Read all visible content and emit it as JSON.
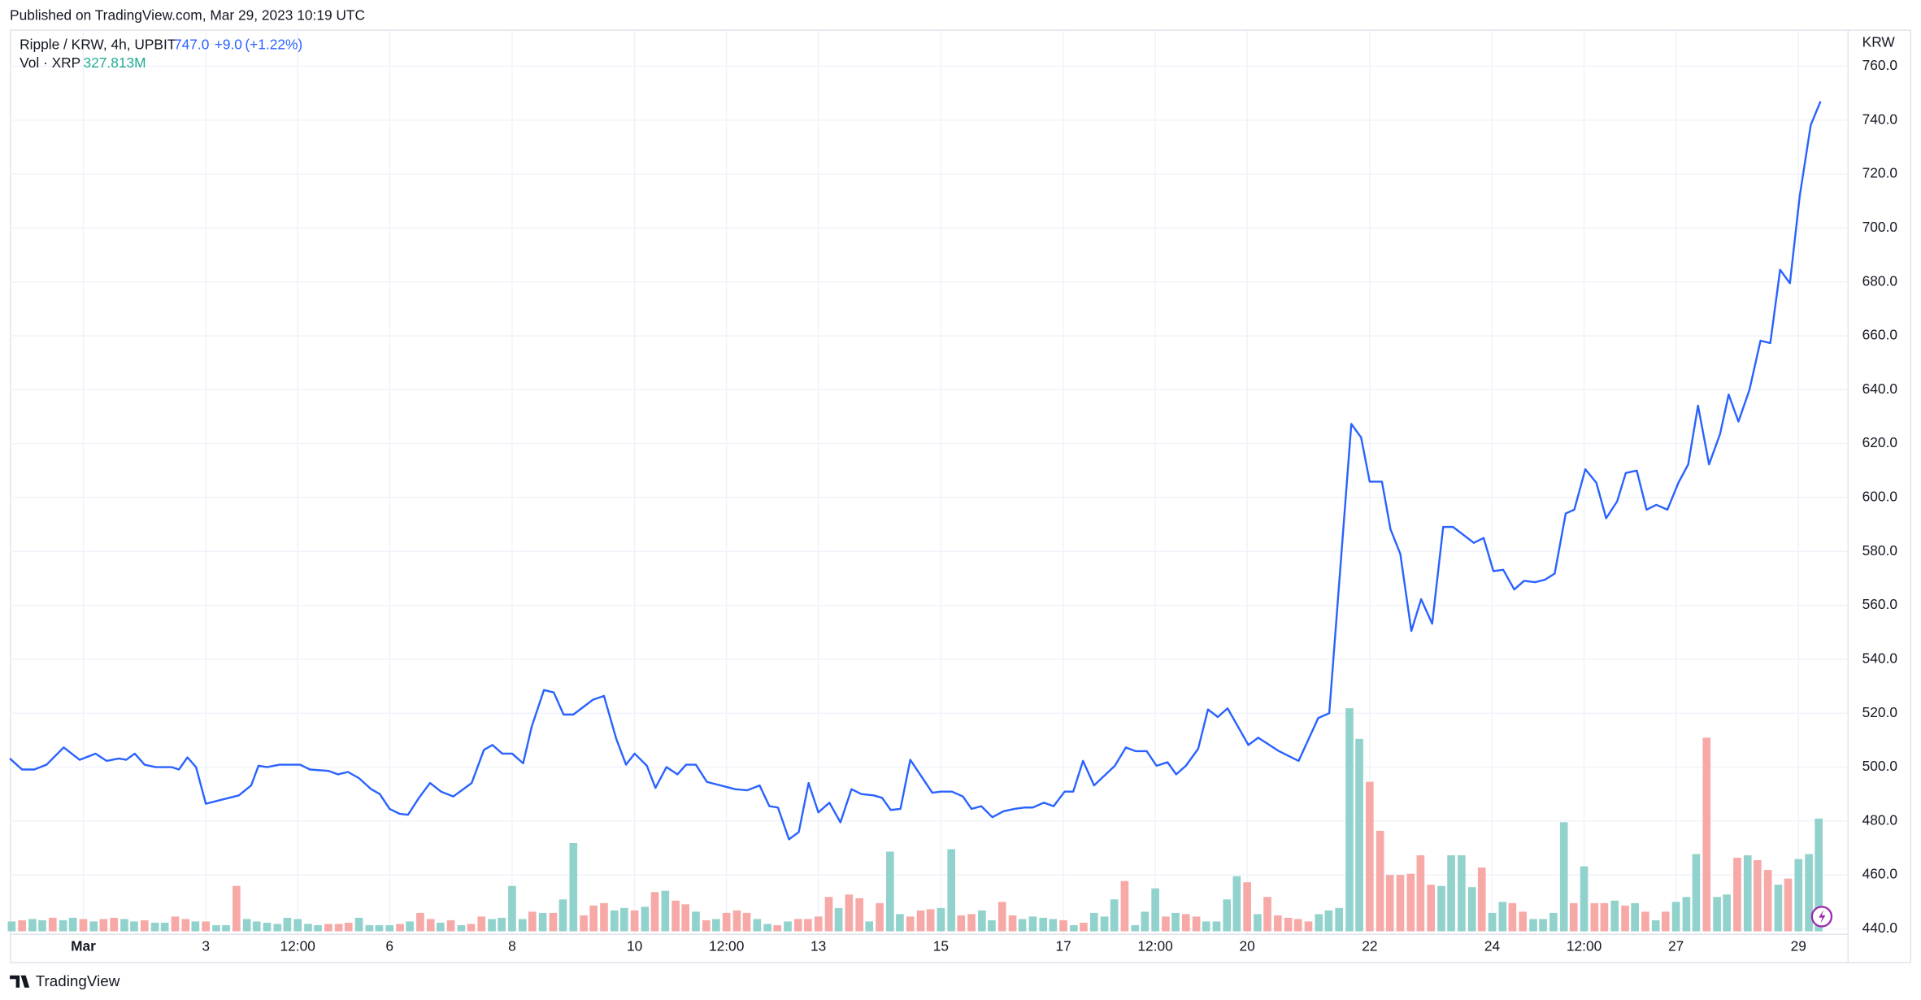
{
  "published": "Published on TradingView.com, Mar 29, 2023 10:19 UTC",
  "footer": "TradingView",
  "chart_data": {
    "type": "line",
    "title": "Ripple / KRW, 4h, UPBIT",
    "last_price": "747.0",
    "change": "+9.0",
    "change_pct": "(+1.22%)",
    "y_axis_label": "KRW",
    "color": "#2962ff",
    "grid": true,
    "xlim": [
      -1.2,
      28.8
    ],
    "xticks": [
      {
        "value": 0,
        "label": "Mar"
      },
      {
        "value": 2,
        "label": "3"
      },
      {
        "value": 3.5,
        "label": "12:00"
      },
      {
        "value": 5,
        "label": "6"
      },
      {
        "value": 7,
        "label": "8"
      },
      {
        "value": 9,
        "label": "10"
      },
      {
        "value": 10.5,
        "label": "12:00"
      },
      {
        "value": 12,
        "label": "13"
      },
      {
        "value": 14,
        "label": "15"
      },
      {
        "value": 16,
        "label": "17"
      },
      {
        "value": 17.5,
        "label": "12:00"
      },
      {
        "value": 19,
        "label": "20"
      },
      {
        "value": 21,
        "label": "22"
      },
      {
        "value": 23,
        "label": "24"
      },
      {
        "value": 24.5,
        "label": "12:00"
      },
      {
        "value": 26,
        "label": "27"
      },
      {
        "value": 28,
        "label": "29"
      }
    ],
    "ylim": [
      440,
      760
    ],
    "yticks": [
      {
        "value": 440,
        "label": "440.0"
      },
      {
        "value": 460,
        "label": "460.0"
      },
      {
        "value": 480,
        "label": "480.0"
      },
      {
        "value": 500,
        "label": "500.0"
      },
      {
        "value": 520,
        "label": "520.0"
      },
      {
        "value": 540,
        "label": "540.0"
      },
      {
        "value": 560,
        "label": "560.0"
      },
      {
        "value": 580,
        "label": "580.0"
      },
      {
        "value": 600,
        "label": "600.0"
      },
      {
        "value": 620,
        "label": "620.0"
      },
      {
        "value": 640,
        "label": "640.0"
      },
      {
        "value": 660,
        "label": "660.0"
      },
      {
        "value": 680,
        "label": "680.0"
      },
      {
        "value": 700,
        "label": "700.0"
      },
      {
        "value": 720,
        "label": "720.0"
      },
      {
        "value": 740,
        "label": "740.0"
      },
      {
        "value": 760,
        "label": "760.0"
      }
    ],
    "x": [
      -1.2,
      -1.0,
      -0.8,
      -0.6,
      -0.32,
      -0.06,
      0.2,
      0.38,
      0.58,
      0.7,
      0.84,
      1.0,
      1.18,
      1.44,
      1.56,
      1.7,
      1.84,
      2.0,
      2.54,
      2.74,
      2.86,
      3.0,
      3.2,
      3.54,
      3.7,
      4.0,
      4.16,
      4.32,
      4.5,
      4.7,
      4.84,
      5.0,
      5.16,
      5.3,
      5.48,
      5.66,
      5.84,
      6.04,
      6.34,
      6.54,
      6.68,
      6.84,
      7.0,
      7.18,
      7.32,
      7.52,
      7.68,
      7.84,
      8.0,
      8.32,
      8.5,
      8.7,
      8.86,
      9.0,
      9.2,
      9.34,
      9.52,
      9.7,
      9.84,
      10.0,
      10.18,
      10.64,
      10.84,
      11.04,
      11.2,
      11.34,
      11.52,
      11.68,
      11.84,
      12.0,
      12.18,
      12.36,
      12.54,
      12.7,
      12.9,
      13.04,
      13.18,
      13.34,
      13.5,
      13.86,
      14.0,
      14.18,
      14.36,
      14.5,
      14.66,
      14.84,
      15.02,
      15.2,
      15.36,
      15.5,
      15.68,
      15.84,
      16.02,
      16.16,
      16.32,
      16.5,
      16.84,
      17.02,
      17.18,
      17.36,
      17.52,
      17.7,
      17.84,
      18.0,
      18.2,
      18.36,
      18.52,
      18.68,
      19.02,
      19.18,
      19.52,
      19.84,
      20.16,
      20.34,
      20.7,
      20.86,
      21.0,
      21.2,
      21.34,
      21.5,
      21.68,
      21.84,
      22.02,
      22.2,
      22.36,
      22.7,
      22.86,
      23.02,
      23.18,
      23.36,
      23.52,
      23.7,
      23.86,
      24.02,
      24.2,
      24.34,
      24.52,
      24.7,
      24.86,
      25.04,
      25.18,
      25.36,
      25.52,
      25.68,
      25.86,
      26.04,
      26.2,
      26.36,
      26.54,
      26.72,
      26.86,
      27.02,
      27.2,
      27.38,
      27.54,
      27.7,
      27.86,
      28.02,
      28.2,
      28.36
    ],
    "values": [
      503.2,
      499.1,
      499.1,
      500.9,
      507.3,
      502.7,
      505.0,
      502.3,
      503.2,
      502.7,
      505.0,
      500.9,
      500.0,
      500.0,
      499.1,
      503.6,
      500.0,
      486.4,
      489.5,
      493.2,
      500.5,
      500.0,
      500.9,
      500.9,
      499.1,
      498.6,
      497.3,
      498.2,
      495.9,
      491.8,
      490.0,
      484.5,
      482.7,
      482.3,
      488.6,
      494.1,
      490.9,
      489.1,
      494.1,
      506.4,
      508.2,
      505.0,
      505.0,
      501.4,
      515.0,
      528.6,
      527.7,
      519.5,
      519.5,
      525.0,
      526.4,
      510.5,
      500.9,
      505.0,
      500.5,
      492.3,
      500.0,
      497.3,
      500.9,
      500.9,
      494.5,
      491.8,
      491.4,
      493.2,
      485.5,
      485.0,
      473.2,
      475.9,
      494.1,
      483.2,
      486.8,
      479.5,
      491.8,
      490.0,
      489.5,
      488.6,
      484.1,
      484.5,
      502.7,
      490.5,
      490.9,
      490.9,
      489.1,
      484.5,
      485.5,
      481.4,
      483.6,
      484.5,
      485.0,
      485.0,
      486.8,
      485.5,
      490.9,
      490.9,
      502.3,
      493.2,
      500.5,
      507.3,
      505.9,
      505.9,
      500.5,
      501.8,
      497.3,
      500.5,
      506.8,
      521.4,
      518.6,
      521.8,
      508.2,
      510.9,
      505.9,
      502.3,
      518.2,
      520.0,
      627.3,
      622.3,
      605.9,
      605.9,
      588.2,
      579.1,
      550.5,
      562.3,
      553.2,
      589.1,
      589.1,
      583.2,
      585.0,
      572.7,
      573.2,
      565.9,
      569.1,
      568.6,
      569.5,
      571.8,
      594.1,
      595.5,
      610.5,
      605.5,
      592.3,
      598.6,
      609.1,
      610.0,
      595.5,
      597.3,
      595.5,
      605.5,
      612.3,
      634.1,
      612.3,
      623.6,
      638.2,
      628.2,
      640.0,
      658.2,
      657.3,
      684.5,
      679.5,
      711.8,
      738.2,
      747.0
    ],
    "volume": {
      "label": "Vol · XRP",
      "last_value": "327.813M",
      "x": [
        -1.17,
        -1,
        -0.83,
        -0.67,
        -0.5,
        -0.33,
        -0.17,
        0,
        0.17,
        0.33,
        0.5,
        0.67,
        0.83,
        1,
        1.17,
        1.33,
        1.5,
        1.67,
        1.83,
        2,
        2.17,
        2.33,
        2.5,
        2.67,
        2.83,
        3,
        3.17,
        3.33,
        3.5,
        3.67,
        3.83,
        4,
        4.17,
        4.33,
        4.5,
        4.67,
        4.83,
        5,
        5.17,
        5.33,
        5.5,
        5.67,
        5.83,
        6,
        6.17,
        6.33,
        6.5,
        6.67,
        6.83,
        7,
        7.17,
        7.33,
        7.5,
        7.67,
        7.83,
        8,
        8.17,
        8.33,
        8.5,
        8.67,
        8.83,
        9,
        9.17,
        9.33,
        9.5,
        9.67,
        9.83,
        10,
        10.17,
        10.33,
        10.5,
        10.67,
        10.83,
        11,
        11.17,
        11.33,
        11.5,
        11.67,
        11.83,
        12,
        12.17,
        12.33,
        12.5,
        12.67,
        12.83,
        13,
        13.17,
        13.33,
        13.5,
        13.67,
        13.83,
        14,
        14.17,
        14.33,
        14.5,
        14.67,
        14.83,
        15,
        15.17,
        15.33,
        15.5,
        15.67,
        15.83,
        16,
        16.17,
        16.33,
        16.5,
        16.67,
        16.83,
        17,
        17.17,
        17.33,
        17.5,
        17.67,
        17.83,
        18,
        18.17,
        18.33,
        18.5,
        18.67,
        18.83,
        19,
        19.17,
        19.33,
        19.5,
        19.67,
        19.83,
        20,
        20.17,
        20.33,
        20.5,
        20.67,
        20.83,
        21,
        21.17,
        21.33,
        21.5,
        21.67,
        21.83,
        22,
        22.17,
        22.33,
        22.5,
        22.67,
        22.83,
        23,
        23.17,
        23.33,
        23.5,
        23.67,
        23.83,
        24,
        24.17,
        24.33,
        24.5,
        24.67,
        24.83,
        25,
        25.17,
        25.33,
        25.5,
        25.67,
        25.83,
        26,
        26.17,
        26.33,
        26.5,
        26.67,
        26.83,
        27,
        27.17,
        27.33,
        27.5,
        27.67,
        27.83,
        28,
        28.17,
        28.33
      ],
      "values": [
        28.5,
        32.1,
        35.6,
        32.1,
        39.2,
        32.1,
        39.2,
        35.6,
        28.5,
        35.6,
        39.2,
        35.6,
        28.5,
        32.1,
        24.9,
        24.9,
        42.8,
        35.6,
        28.5,
        28.5,
        17.8,
        17.8,
        131.8,
        35.6,
        28.5,
        24.9,
        21.4,
        39.2,
        35.6,
        21.4,
        17.8,
        21.4,
        21.4,
        24.9,
        39.2,
        17.8,
        17.8,
        17.8,
        21.4,
        28.5,
        53.4,
        35.6,
        24.9,
        32.1,
        17.8,
        21.4,
        42.8,
        35.6,
        39.2,
        131.8,
        35.6,
        57.0,
        53.4,
        53.4,
        92.6,
        256.5,
        46.3,
        74.8,
        81.9,
        60.6,
        67.7,
        60.6,
        71.3,
        114.0,
        117.6,
        89.1,
        78.4,
        57.0,
        32.1,
        35.6,
        53.4,
        60.6,
        53.4,
        35.6,
        21.4,
        17.8,
        28.5,
        35.6,
        35.6,
        42.8,
        99.8,
        67.7,
        106.9,
        96.2,
        28.5,
        81.9,
        231.6,
        49.9,
        42.8,
        60.6,
        64.1,
        67.7,
        238.7,
        46.3,
        49.9,
        60.6,
        32.1,
        85.5,
        46.3,
        35.6,
        42.8,
        39.2,
        35.6,
        32.1,
        17.8,
        24.9,
        53.4,
        42.8,
        92.6,
        146.1,
        17.8,
        57.0,
        124.7,
        42.8,
        53.4,
        49.9,
        42.8,
        28.5,
        28.5,
        92.6,
        160.3,
        142.5,
        49.9,
        99.8,
        46.3,
        39.2,
        35.6,
        28.5,
        49.9,
        60.6,
        67.7,
        648.5,
        559.4,
        434.7,
        292.2,
        163.9,
        163.9,
        167.5,
        220.9,
        135.4,
        131.8,
        220.9,
        220.9,
        128.3,
        185.3,
        53.4,
        85.5,
        81.9,
        57.0,
        35.6,
        35.6,
        53.4,
        317.1,
        81.9,
        188.8,
        81.9,
        81.9,
        89.1,
        74.8,
        81.9,
        57.0,
        32.1,
        57.0,
        85.5,
        99.8,
        224.5,
        563.0,
        99.8,
        106.9,
        213.8,
        220.9,
        206.7,
        178.2,
        135.4,
        153.2,
        210.2,
        224.5,
        327.813
      ],
      "colors": [
        "#92d2cc",
        "#f7a9a7",
        "#92d2cc",
        "#92d2cc",
        "#f7a9a7",
        "#92d2cc",
        "#92d2cc",
        "#f7a9a7",
        "#92d2cc",
        "#f7a9a7",
        "#f7a9a7",
        "#92d2cc",
        "#92d2cc",
        "#f7a9a7",
        "#92d2cc",
        "#92d2cc",
        "#f7a9a7",
        "#f7a9a7",
        "#92d2cc",
        "#f7a9a7",
        "#92d2cc",
        "#92d2cc",
        "#f7a9a7",
        "#92d2cc",
        "#92d2cc",
        "#92d2cc",
        "#92d2cc",
        "#92d2cc",
        "#92d2cc",
        "#92d2cc",
        "#92d2cc",
        "#f7a9a7",
        "#f7a9a7",
        "#f7a9a7",
        "#92d2cc",
        "#92d2cc",
        "#92d2cc",
        "#92d2cc",
        "#f7a9a7",
        "#92d2cc",
        "#f7a9a7",
        "#f7a9a7",
        "#92d2cc",
        "#f7a9a7",
        "#92d2cc",
        "#f7a9a7",
        "#f7a9a7",
        "#92d2cc",
        "#92d2cc",
        "#92d2cc",
        "#92d2cc",
        "#f7a9a7",
        "#92d2cc",
        "#f7a9a7",
        "#92d2cc",
        "#92d2cc",
        "#f7a9a7",
        "#f7a9a7",
        "#f7a9a7",
        "#92d2cc",
        "#92d2cc",
        "#f7a9a7",
        "#92d2cc",
        "#f7a9a7",
        "#92d2cc",
        "#f7a9a7",
        "#f7a9a7",
        "#92d2cc",
        "#f7a9a7",
        "#92d2cc",
        "#f7a9a7",
        "#f7a9a7",
        "#f7a9a7",
        "#92d2cc",
        "#92d2cc",
        "#f7a9a7",
        "#92d2cc",
        "#f7a9a7",
        "#f7a9a7",
        "#f7a9a7",
        "#f7a9a7",
        "#92d2cc",
        "#f7a9a7",
        "#f7a9a7",
        "#92d2cc",
        "#f7a9a7",
        "#92d2cc",
        "#92d2cc",
        "#f7a9a7",
        "#f7a9a7",
        "#f7a9a7",
        "#92d2cc",
        "#92d2cc",
        "#f7a9a7",
        "#f7a9a7",
        "#92d2cc",
        "#92d2cc",
        "#f7a9a7",
        "#f7a9a7",
        "#92d2cc",
        "#92d2cc",
        "#92d2cc",
        "#92d2cc",
        "#f7a9a7",
        "#92d2cc",
        "#f7a9a7",
        "#92d2cc",
        "#92d2cc",
        "#92d2cc",
        "#f7a9a7",
        "#92d2cc",
        "#92d2cc",
        "#92d2cc",
        "#f7a9a7",
        "#92d2cc",
        "#f7a9a7",
        "#f7a9a7",
        "#92d2cc",
        "#92d2cc",
        "#92d2cc",
        "#92d2cc",
        "#f7a9a7",
        "#92d2cc",
        "#f7a9a7",
        "#f7a9a7",
        "#f7a9a7",
        "#f7a9a7",
        "#f7a9a7",
        "#92d2cc",
        "#92d2cc",
        "#92d2cc",
        "#92d2cc",
        "#92d2cc",
        "#f7a9a7",
        "#f7a9a7",
        "#f7a9a7",
        "#f7a9a7",
        "#f7a9a7",
        "#f7a9a7",
        "#f7a9a7",
        "#92d2cc",
        "#92d2cc",
        "#92d2cc",
        "#92d2cc",
        "#f7a9a7",
        "#92d2cc",
        "#92d2cc",
        "#f7a9a7",
        "#f7a9a7",
        "#92d2cc",
        "#92d2cc",
        "#92d2cc",
        "#92d2cc",
        "#f7a9a7",
        "#92d2cc",
        "#f7a9a7",
        "#f7a9a7",
        "#92d2cc",
        "#f7a9a7",
        "#92d2cc",
        "#f7a9a7",
        "#92d2cc",
        "#f7a9a7",
        "#92d2cc",
        "#92d2cc",
        "#92d2cc",
        "#f7a9a7",
        "#92d2cc",
        "#92d2cc",
        "#f7a9a7",
        "#92d2cc",
        "#f7a9a7",
        "#f7a9a7",
        "#92d2cc",
        "#f7a9a7",
        "#92d2cc",
        "#92d2cc",
        "#92d2cc"
      ]
    }
  }
}
